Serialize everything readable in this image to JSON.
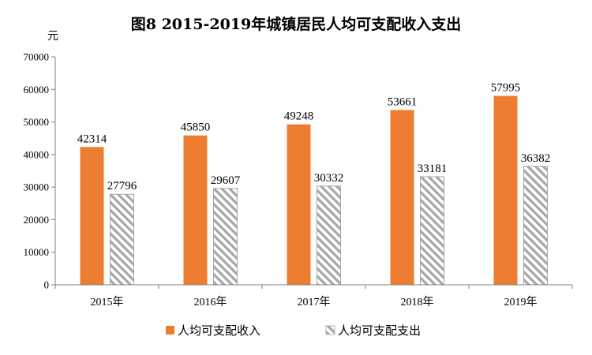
{
  "chart_data": {
    "type": "bar",
    "title": "图8   2015-2019年城镇居民人均可支配收入支出",
    "ylabel": "元",
    "xlabel": "",
    "categories": [
      "2015年",
      "2016年",
      "2017年",
      "2018年",
      "2019年"
    ],
    "ylim": [
      0,
      70000
    ],
    "yticks": [
      0,
      10000,
      20000,
      30000,
      40000,
      50000,
      60000,
      70000
    ],
    "grid": false,
    "legend_position": "bottom",
    "series": [
      {
        "name": "人均可支配收入",
        "values": [
          42314,
          45850,
          49248,
          53661,
          57995
        ],
        "color": "#ED7D31",
        "fill": "solid"
      },
      {
        "name": "人均可支配支出",
        "values": [
          27796,
          29607,
          30332,
          33181,
          36382
        ],
        "color": "#A6A6A6",
        "fill": "diagonal-hatch"
      }
    ]
  }
}
